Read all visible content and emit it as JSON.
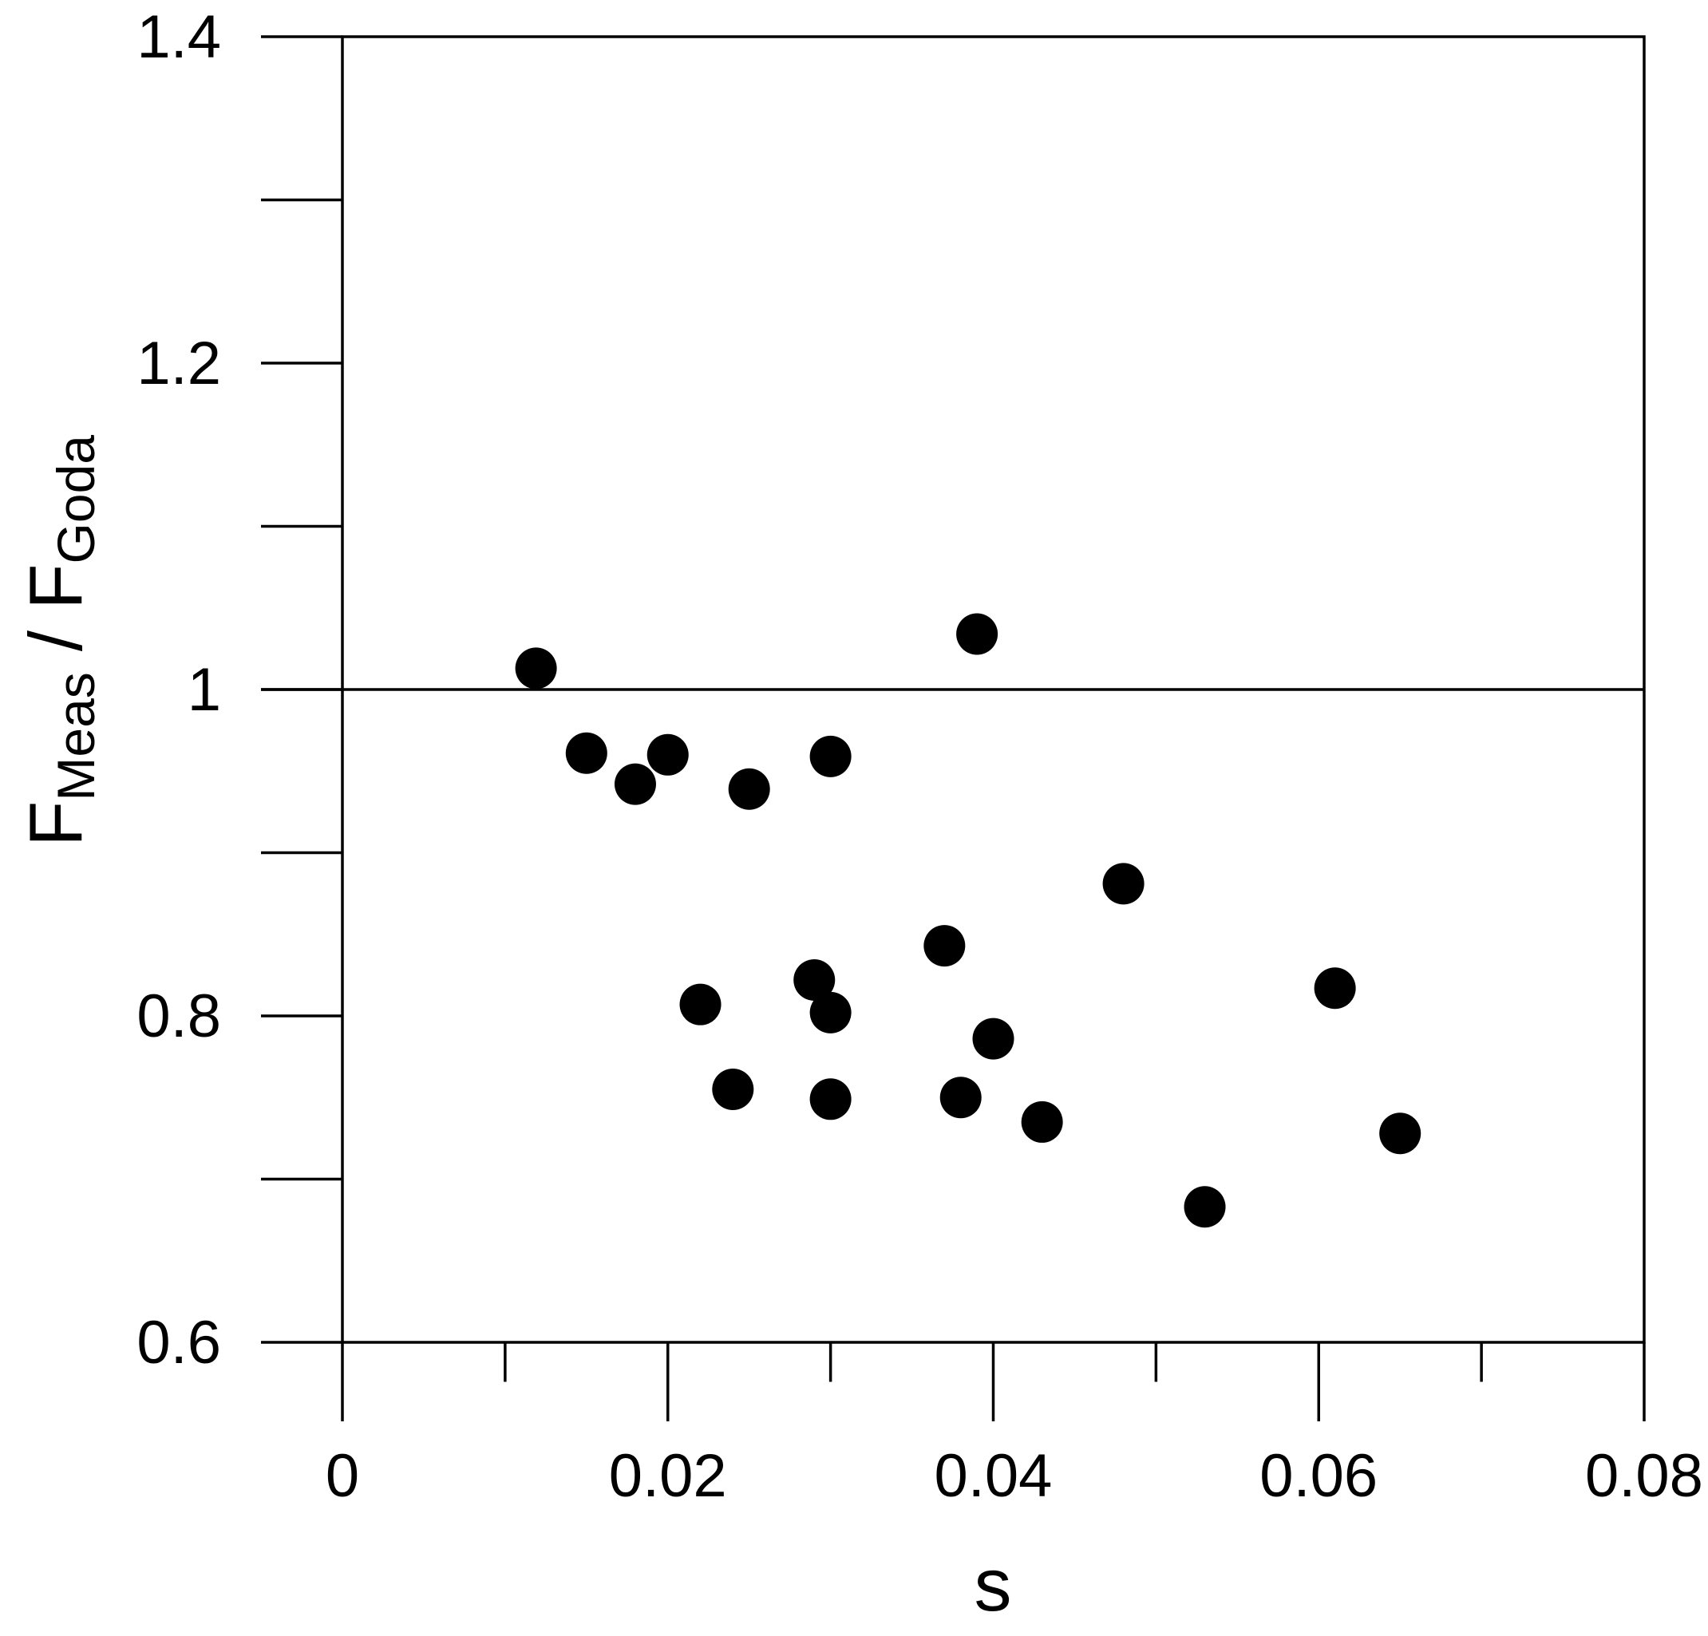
{
  "chart_data": {
    "type": "scatter",
    "xlabel": "s",
    "ylabel": {
      "base_1": "F",
      "sub_1": "Meas",
      "separator": " / ",
      "base_2": "F",
      "sub_2": "Goda"
    },
    "xlim": [
      0,
      0.08
    ],
    "ylim": [
      0.6,
      1.4
    ],
    "xticks": [
      0,
      0.01,
      0.02,
      0.03,
      0.04,
      0.05,
      0.06,
      0.07,
      0.08
    ],
    "xtick_labels": [
      "0",
      "0.02",
      "0.04",
      "0.06",
      "0.08"
    ],
    "xtick_label_values": [
      0,
      0.02,
      0.04,
      0.06,
      0.08
    ],
    "yticks": [
      0.6,
      0.7,
      0.8,
      0.9,
      1.0,
      1.1,
      1.2,
      1.3,
      1.4
    ],
    "ytick_labels": [
      "0.6",
      "0.8",
      "1",
      "1.2",
      "1.4"
    ],
    "ytick_label_values": [
      0.6,
      0.8,
      1.0,
      1.2,
      1.4
    ],
    "reference_line": {
      "y": 1.0
    },
    "grid": false,
    "marker_color": "#000000",
    "points": [
      {
        "x": 0.0119,
        "y": 1.013
      },
      {
        "x": 0.015,
        "y": 0.961
      },
      {
        "x": 0.018,
        "y": 0.942
      },
      {
        "x": 0.02,
        "y": 0.96
      },
      {
        "x": 0.025,
        "y": 0.939
      },
      {
        "x": 0.03,
        "y": 0.959
      },
      {
        "x": 0.039,
        "y": 1.034
      },
      {
        "x": 0.048,
        "y": 0.881
      },
      {
        "x": 0.037,
        "y": 0.843
      },
      {
        "x": 0.022,
        "y": 0.807
      },
      {
        "x": 0.029,
        "y": 0.822
      },
      {
        "x": 0.03,
        "y": 0.802
      },
      {
        "x": 0.04,
        "y": 0.786
      },
      {
        "x": 0.061,
        "y": 0.817
      },
      {
        "x": 0.024,
        "y": 0.755
      },
      {
        "x": 0.03,
        "y": 0.749
      },
      {
        "x": 0.038,
        "y": 0.75
      },
      {
        "x": 0.043,
        "y": 0.735
      },
      {
        "x": 0.065,
        "y": 0.728
      },
      {
        "x": 0.053,
        "y": 0.683
      }
    ]
  }
}
